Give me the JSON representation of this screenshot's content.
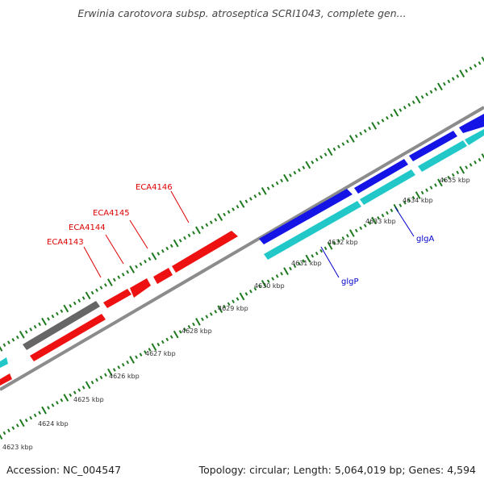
{
  "title": "Erwinia carotovora subsp. atroseptica SCRI1043, complete gen...",
  "footer": {
    "accession": "Accession: NC_004547",
    "summary": "Topology: circular; Length: 5,064,019 bp; Genes: 4,594"
  },
  "colors": {
    "backbone": "#8c8c8c",
    "tick": "#1e7a1e",
    "scale_text": "#333333",
    "red_gene": "#ee1111",
    "red_label": "#dd0000",
    "blue_gene": "#1414e6",
    "cyan_gene": "#22c8c8",
    "gray_gene": "#666666",
    "blue_label": "#0000cc"
  },
  "scale_labels": [
    "4623 kbp",
    "4624 kbp",
    "4625 kbp",
    "4626 kbp",
    "4627 kbp",
    "4628 kbp",
    "4629 kbp",
    "4630 kbp",
    "4631 kbp",
    "4632 kbp",
    "4633 kbp",
    "4634 kbp",
    "4635 kbp"
  ],
  "gene_labels": {
    "ECA4143": "ECA4143",
    "ECA4144": "ECA4144",
    "ECA4145": "ECA4145",
    "ECA4146": "ECA4146",
    "glgP": "glgP",
    "glgA": "glgA"
  }
}
